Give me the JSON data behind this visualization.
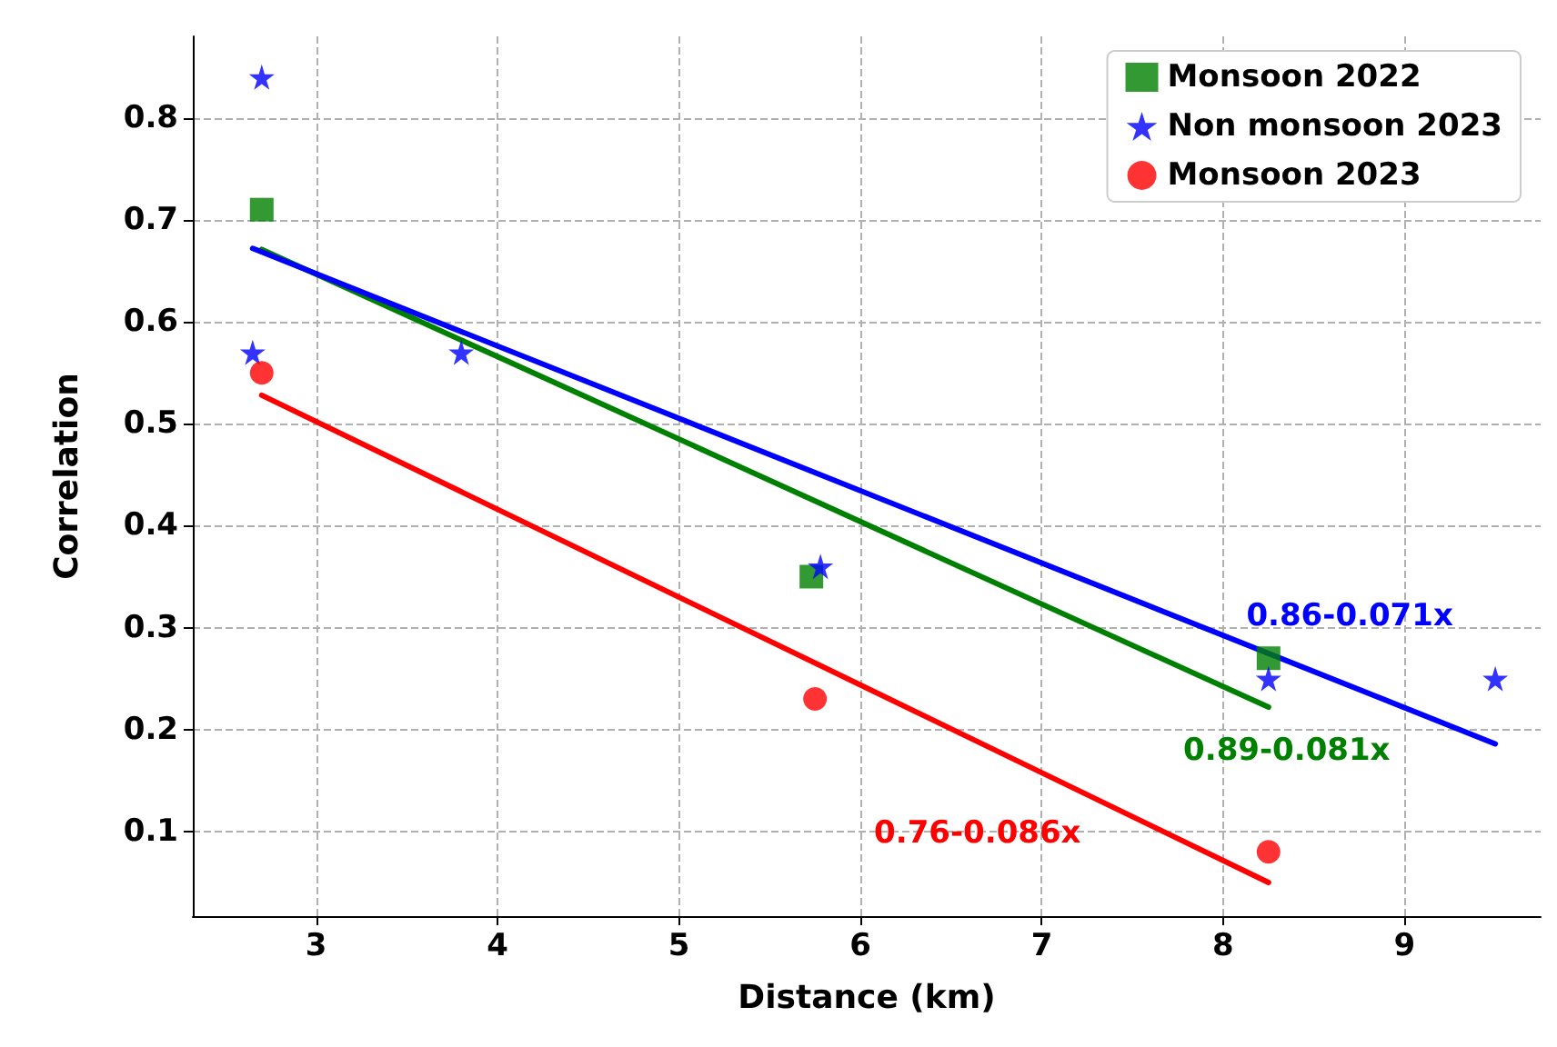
{
  "chart_data": {
    "type": "scatter",
    "xlabel": "Distance (km)",
    "ylabel": "Correlation",
    "xlim": [
      2.32,
      9.75
    ],
    "ylim": [
      0.017,
      0.88
    ],
    "xticks": [
      3,
      4,
      5,
      6,
      7,
      8,
      9
    ],
    "yticks": [
      0.1,
      0.2,
      0.3,
      0.4,
      0.5,
      0.6,
      0.7,
      0.8
    ],
    "grid": true,
    "legend": "top right",
    "series": [
      {
        "name": "Monsoon 2022",
        "color": "#008000",
        "marker": "square",
        "x": [
          2.7,
          5.73,
          8.25
        ],
        "values": [
          0.71,
          0.35,
          0.27
        ]
      },
      {
        "name": "Non monsoon 2023",
        "color": "#0000ff",
        "marker": "star",
        "x": [
          2.7,
          2.65,
          3.8,
          5.78,
          8.25,
          9.5
        ],
        "values": [
          0.84,
          0.57,
          0.57,
          0.36,
          0.25,
          0.25
        ]
      },
      {
        "name": "Monsoon 2023",
        "color": "#ff0000",
        "marker": "circle",
        "x": [
          2.7,
          5.75,
          8.25
        ],
        "values": [
          0.55,
          0.23,
          0.08
        ]
      },
      {
        "name": "0.89-0.081x",
        "type": "line",
        "color": "#008000",
        "marker": "none",
        "line_style": "solid",
        "x": [
          2.7,
          8.25
        ],
        "values": [
          0.671,
          0.222
        ]
      },
      {
        "name": "0.86-0.071x",
        "type": "line",
        "color": "#0000ff",
        "marker": "none",
        "line_style": "solid",
        "x": [
          2.65,
          9.5
        ],
        "values": [
          0.672,
          0.186
        ]
      },
      {
        "name": "0.76-0.086x",
        "type": "line",
        "color": "#ff0000",
        "marker": "none",
        "line_style": "solid",
        "x": [
          2.7,
          8.25
        ],
        "values": [
          0.528,
          0.05
        ]
      }
    ]
  }
}
